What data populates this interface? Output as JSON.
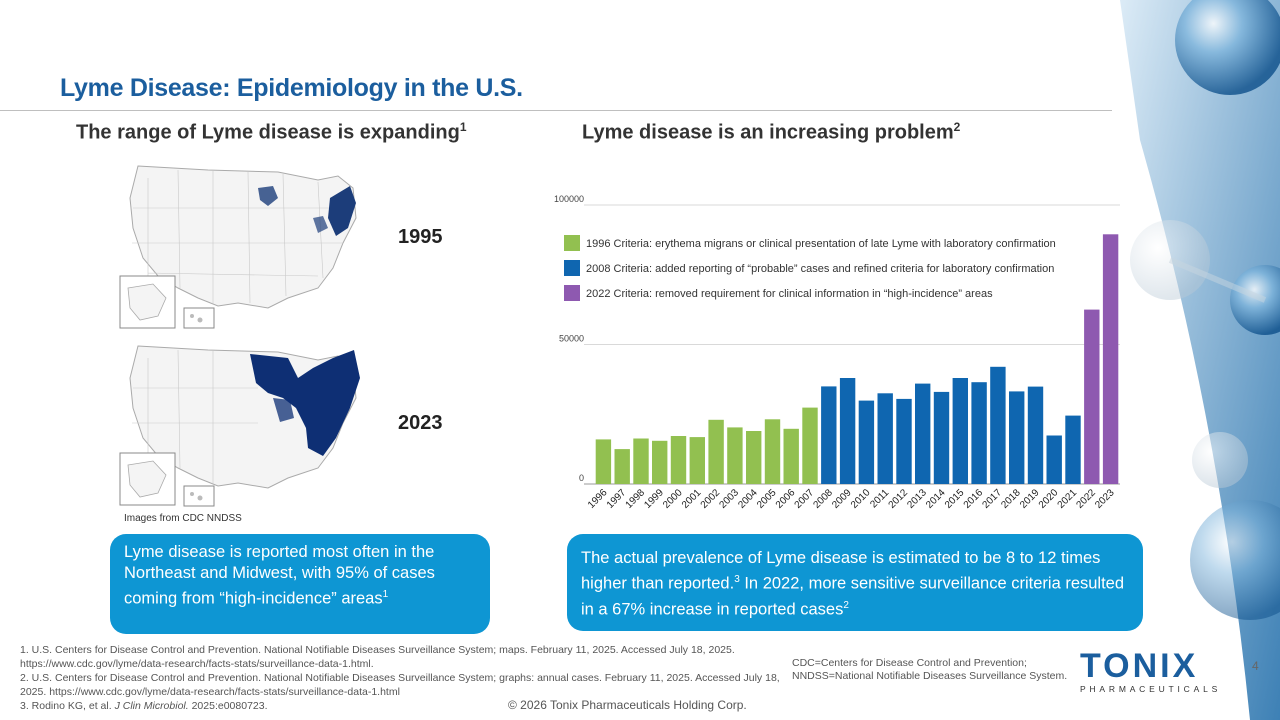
{
  "slide": {
    "title": "Lyme Disease: Epidemiology in the U.S.",
    "left_heading": "The range of Lyme disease is expanding",
    "left_heading_sup": "1",
    "right_heading": "Lyme disease is an increasing problem",
    "right_heading_sup": "2",
    "page_number": "4"
  },
  "maps": {
    "label_1995": "1995",
    "label_2023": "2023",
    "credit": "Images from CDC NNDSS"
  },
  "callouts": {
    "left_text": "Lyme disease is reported most often in the Northeast and Midwest, with 95% of cases coming from “high-incidence” areas",
    "left_sup": "1",
    "right_text_1": "The actual prevalence of Lyme disease is estimated to be 8 to 12 times higher than reported.",
    "right_sup_1": "3",
    "right_text_2": " In 2022, more sensitive surveillance criteria resulted in a 67% increase in reported cases",
    "right_sup_2": "2"
  },
  "references": {
    "ref1": "1. U.S. Centers for Disease Control and Prevention. National Notifiable Diseases Surveillance System; maps. February 11, 2025. Accessed July 18, 2025. https://www.cdc.gov/lyme/data-research/facts-stats/surveillance-data-1.html.",
    "ref2": "2. U.S. Centers for Disease Control and Prevention. National Notifiable Diseases Surveillance System; graphs: annual cases. February 11, 2025. Accessed July 18, 2025. https://www.cdc.gov/lyme/data-research/facts-stats/surveillance-data-1.html",
    "ref3_prefix": "3. Rodino KG, et al. ",
    "ref3_journal": "J Clin Microbiol.",
    "ref3_suffix": " 2025:e0080723."
  },
  "abbreviations": "CDC=Centers for Disease Control and Prevention; NNDSS=National Notifiable Diseases Surveillance System.",
  "copyright": "© 2026 Tonix Pharmaceuticals Holding Corp.",
  "logo": {
    "word": "TONIX",
    "sub": "PHARMACEUTICALS"
  },
  "colors": {
    "title_blue": "#1b5e9e",
    "callout_blue": "#0e96d3",
    "green": "#92c050",
    "blue": "#0f66b0",
    "purple": "#8e59b0"
  },
  "chart_data": {
    "type": "bar",
    "title": "",
    "xlabel": "",
    "ylabel": "",
    "ylim": [
      0,
      100000
    ],
    "yticks": [
      "0",
      "50000",
      "100000"
    ],
    "categories": [
      "1996",
      "1997",
      "1998",
      "1999",
      "2000",
      "2001",
      "2002",
      "2003",
      "2004",
      "2005",
      "2006",
      "2007",
      "2008",
      "2009",
      "2010",
      "2011",
      "2012",
      "2013",
      "2014",
      "2015",
      "2016",
      "2017",
      "2018",
      "2019",
      "2020",
      "2021",
      "2022",
      "2023"
    ],
    "values": [
      16000,
      12500,
      16300,
      15500,
      17200,
      16800,
      23000,
      20300,
      19000,
      23200,
      19800,
      27400,
      35000,
      38000,
      29900,
      32500,
      30500,
      36000,
      33000,
      38000,
      36500,
      42000,
      33200,
      34900,
      17400,
      24500,
      62500,
      89500
    ],
    "criteria": [
      "1996",
      "1996",
      "1996",
      "1996",
      "1996",
      "1996",
      "1996",
      "1996",
      "1996",
      "1996",
      "1996",
      "1996",
      "2008",
      "2008",
      "2008",
      "2008",
      "2008",
      "2008",
      "2008",
      "2008",
      "2008",
      "2008",
      "2008",
      "2008",
      "2008",
      "2008",
      "2022",
      "2022"
    ],
    "legend": [
      {
        "key": "1996",
        "label": "1996 Criteria: erythema migrans or clinical presentation of late Lyme with laboratory confirmation",
        "color": "#92c050"
      },
      {
        "key": "2008",
        "label": "2008 Criteria: added reporting of “probable” cases and refined criteria for laboratory confirmation",
        "color": "#0f66b0"
      },
      {
        "key": "2022",
        "label": "2022 Criteria: removed requirement for clinical information in “high-incidence” areas",
        "color": "#8e59b0"
      }
    ]
  }
}
